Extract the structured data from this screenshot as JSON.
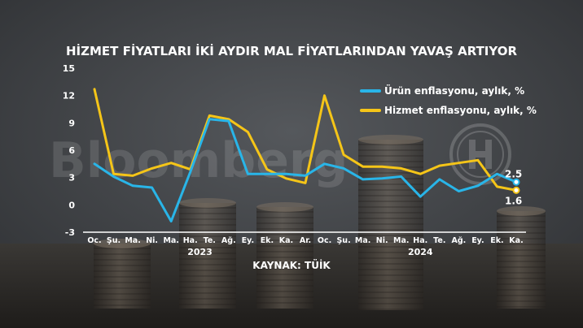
{
  "watermark": {
    "text": "Bloomberg"
  },
  "chart_data": {
    "type": "line",
    "title": "HİZMET FİYATLARI İKİ AYDIR MAL FİYATLARINDAN YAVAŞ ARTIYOR",
    "source": "KAYNAK: TÜİK",
    "xlabel": "",
    "ylabel": "",
    "ylim": [
      -3,
      15
    ],
    "yticks": [
      -3,
      0,
      3,
      6,
      9,
      12,
      15
    ],
    "grid": false,
    "legend_position": "top-right",
    "categories": [
      "Oc.",
      "Şu.",
      "Ma.",
      "Ni.",
      "Ma.",
      "Ha.",
      "Te.",
      "Ağ.",
      "Ey.",
      "Ek.",
      "Ka.",
      "Ar.",
      "Oc.",
      "Şu.",
      "Ma.",
      "Ni.",
      "Ma.",
      "Ha.",
      "Te.",
      "Ağ.",
      "Ey.",
      "Ek.",
      "Ka."
    ],
    "year_labels": [
      {
        "label": "2023",
        "start": 0,
        "end": 11
      },
      {
        "label": "2024",
        "start": 12,
        "end": 22
      }
    ],
    "series": [
      {
        "name": "Ürün enflasyonu, aylık, %",
        "color": "#29b5e8",
        "values": [
          4.5,
          3.1,
          2.1,
          1.9,
          -1.8,
          3.6,
          9.4,
          9.2,
          3.4,
          3.4,
          3.4,
          3.2,
          4.5,
          4.0,
          2.8,
          2.9,
          3.1,
          0.9,
          2.8,
          1.5,
          2.1,
          3.4,
          2.5
        ],
        "end_label": "2.5"
      },
      {
        "name": "Hizmet enflasyonu, aylık, %",
        "color": "#f5c518",
        "values": [
          12.7,
          3.4,
          3.2,
          4.0,
          4.6,
          3.9,
          9.8,
          9.4,
          8.0,
          3.9,
          2.9,
          2.4,
          12.0,
          5.5,
          4.2,
          4.2,
          4.0,
          3.4,
          4.3,
          4.6,
          4.9,
          2.0,
          1.6
        ],
        "end_label": "1.6"
      }
    ]
  }
}
